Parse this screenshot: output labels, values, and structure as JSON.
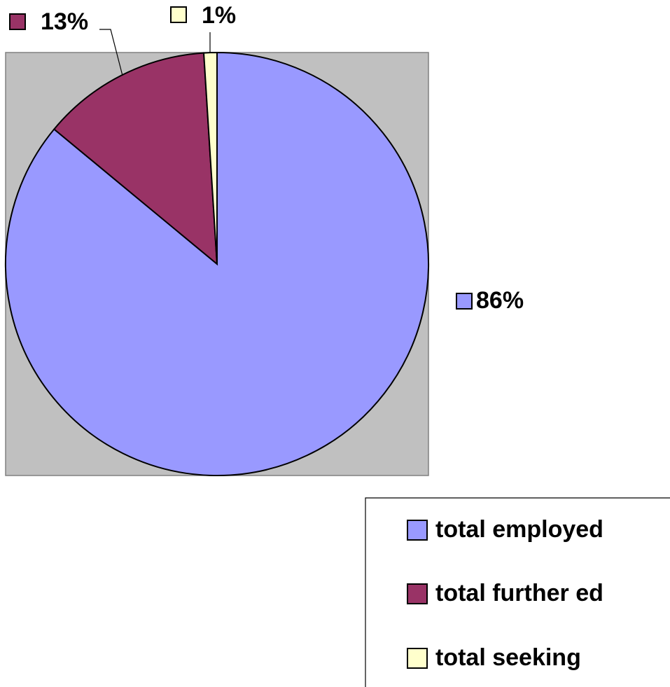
{
  "chart_data": {
    "type": "pie",
    "categories": [
      "total employed",
      "total further ed",
      "total seeking"
    ],
    "values": [
      86,
      13,
      1
    ],
    "value_labels": [
      "86%",
      "13%",
      "1%"
    ],
    "colors": [
      "#9999ff",
      "#993366",
      "#ffffcc"
    ],
    "legend": "bottom-right"
  }
}
